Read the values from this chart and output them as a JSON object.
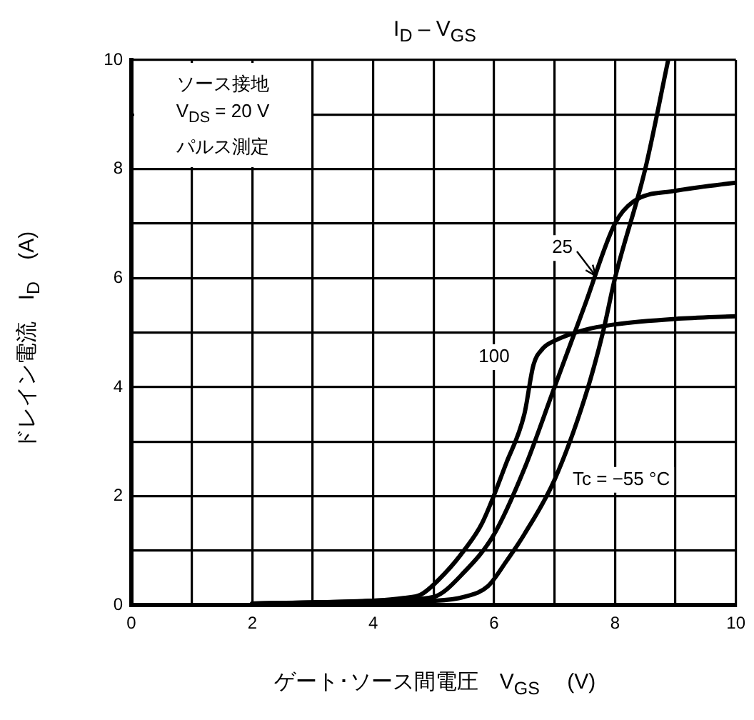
{
  "chart_data": {
    "type": "line",
    "title": "I$_{D}$ – V$_{GS}$",
    "xlabel": "ゲート･ソース間電圧　V$_{GS}$　 (V)",
    "ylabel": "ドレイン電流　I$_{D}$　(A)",
    "annotations": [
      "ソース接地",
      "V$_{DS}$ = 20 V",
      "パルス測定"
    ],
    "xlim": [
      0,
      10
    ],
    "ylim": [
      0,
      10
    ],
    "xticks": [
      0,
      {
        "value": 1,
        "label": null
      },
      2,
      {
        "value": 3,
        "label": null
      },
      4,
      {
        "value": 5,
        "label": null
      },
      6,
      {
        "value": 7,
        "label": null
      },
      8,
      {
        "value": 9,
        "label": null
      },
      10
    ],
    "yticks": [
      0,
      {
        "value": 1,
        "label": null
      },
      2,
      {
        "value": 3,
        "label": null
      },
      4,
      {
        "value": 5,
        "label": null
      },
      6,
      {
        "value": 7,
        "label": null
      },
      8,
      {
        "value": 9,
        "label": null
      },
      10
    ],
    "grid": true,
    "legend": false,
    "marker": "none",
    "line_style": "solid",
    "series": [
      {
        "name": "100",
        "color": "#000000",
        "x": [
          2,
          3,
          4,
          4.5,
          4.8,
          5.2,
          5.5,
          5.8,
          6.2,
          6.5,
          6.65,
          6.8,
          7,
          7.5,
          8,
          9,
          10
        ],
        "values": [
          0.03,
          0.05,
          0.08,
          0.13,
          0.2,
          0.6,
          1.0,
          1.5,
          2.6,
          3.5,
          4.4,
          4.7,
          4.85,
          5.05,
          5.15,
          5.25,
          5.3
        ]
      },
      {
        "name": "25",
        "color": "#000000",
        "x": [
          2,
          3,
          4,
          4.5,
          5,
          5.5,
          6,
          6.5,
          7,
          7.5,
          8,
          8.3,
          9,
          10
        ],
        "values": [
          0.03,
          0.05,
          0.08,
          0.1,
          0.15,
          0.6,
          1.3,
          2.5,
          4.0,
          5.5,
          7.0,
          7.4,
          7.6,
          7.75
        ]
      },
      {
        "name": "Tc = −55 °C",
        "color": "#000000",
        "x": [
          2,
          3,
          4,
          5,
          5.5,
          5.9,
          6.2,
          6.5,
          7,
          7.5,
          7.8,
          8,
          8.5,
          8.88
        ],
        "values": [
          0.03,
          0.05,
          0.06,
          0.08,
          0.15,
          0.35,
          0.8,
          1.3,
          2.3,
          3.8,
          5.0,
          6.0,
          8.0,
          10
        ]
      }
    ]
  }
}
